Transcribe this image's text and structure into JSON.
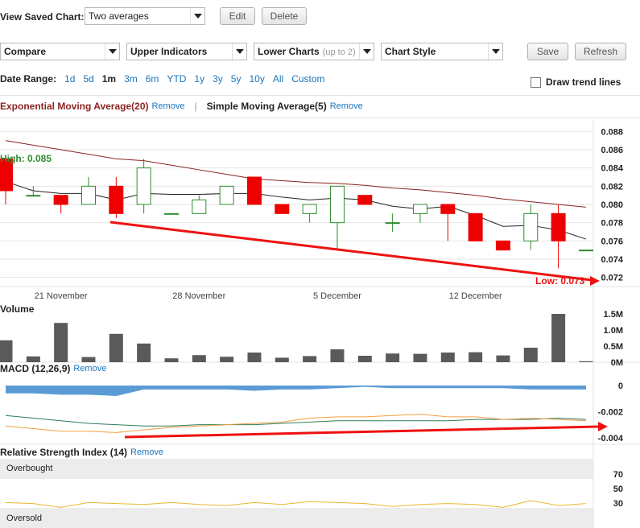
{
  "saved_chart": {
    "label": "View Saved Chart:",
    "value": "Two averages",
    "edit": "Edit",
    "delete": "Delete"
  },
  "toolbar": {
    "compare": "Compare",
    "upper_indicators": "Upper Indicators",
    "lower_charts": "Lower Charts",
    "lower_charts_sub": "(up to 2)",
    "chart_style": "Chart Style",
    "save": "Save",
    "refresh": "Refresh"
  },
  "date_range": {
    "label": "Date Range:",
    "options": [
      "1d",
      "5d",
      "1m",
      "3m",
      "6m",
      "YTD",
      "1y",
      "3y",
      "5y",
      "10y",
      "All",
      "Custom"
    ],
    "active": "1m"
  },
  "trend_lines": {
    "label": "Draw trend lines"
  },
  "indicators": [
    {
      "name": "Exponential Moving Average(20)",
      "remove": "Remove",
      "color": "#8b2323"
    },
    {
      "name": "Simple Moving Average(5)",
      "remove": "Remove",
      "color": "#222222"
    }
  ],
  "price_panel": {
    "high_label": "High: 0.085",
    "low_label": "Low: 0.073",
    "y_ticks": [
      "0.088",
      "0.086",
      "0.084",
      "0.082",
      "0.080",
      "0.078",
      "0.076",
      "0.074",
      "0.072"
    ],
    "x_ticks": [
      "21 November",
      "28 November",
      "5 December",
      "12 December"
    ]
  },
  "volume_panel": {
    "title": "Volume",
    "y_ticks": [
      "1.5M",
      "1.0M",
      "0.5M",
      "0M"
    ]
  },
  "macd_panel": {
    "title": "MACD (12,26,9)",
    "remove": "Remove",
    "y_ticks": [
      "0",
      "-0.002",
      "-0.004"
    ]
  },
  "rsi_panel": {
    "title": "Relative Strength Index (14)",
    "remove": "Remove",
    "overbought": "Overbought",
    "oversold": "Oversold",
    "y_ticks": [
      "70",
      "50",
      "30"
    ]
  },
  "colors": {
    "up": "#2e8b2e",
    "down": "#ee0000",
    "ema": "#8b2323",
    "sma": "#222222",
    "volume": "#5a5a5a",
    "macd_hist": "#5b9bd5",
    "macd_line": "#2e7d5a",
    "signal_line": "#f0a040",
    "rsi_line": "#e8b830",
    "annotation": "#ee1111"
  },
  "chart_data": [
    {
      "type": "candlestick",
      "ylim": [
        0.071,
        0.089
      ],
      "candles": [
        {
          "o": 0.085,
          "h": 0.085,
          "l": 0.08,
          "c": 0.0815
        },
        {
          "o": 0.081,
          "h": 0.082,
          "l": 0.081,
          "c": 0.081
        },
        {
          "o": 0.081,
          "h": 0.081,
          "l": 0.079,
          "c": 0.08
        },
        {
          "o": 0.08,
          "h": 0.083,
          "l": 0.08,
          "c": 0.082
        },
        {
          "o": 0.082,
          "h": 0.083,
          "l": 0.0785,
          "c": 0.079
        },
        {
          "o": 0.08,
          "h": 0.085,
          "l": 0.079,
          "c": 0.084
        },
        {
          "o": 0.079,
          "h": 0.079,
          "l": 0.079,
          "c": 0.079
        },
        {
          "o": 0.079,
          "h": 0.081,
          "l": 0.079,
          "c": 0.0805
        },
        {
          "o": 0.08,
          "h": 0.082,
          "l": 0.08,
          "c": 0.082
        },
        {
          "o": 0.083,
          "h": 0.083,
          "l": 0.08,
          "c": 0.08
        },
        {
          "o": 0.08,
          "h": 0.08,
          "l": 0.079,
          "c": 0.079
        },
        {
          "o": 0.079,
          "h": 0.08,
          "l": 0.078,
          "c": 0.08
        },
        {
          "o": 0.078,
          "h": 0.082,
          "l": 0.075,
          "c": 0.082
        },
        {
          "o": 0.081,
          "h": 0.081,
          "l": 0.08,
          "c": 0.08
        },
        {
          "o": 0.078,
          "h": 0.079,
          "l": 0.077,
          "c": 0.078
        },
        {
          "o": 0.079,
          "h": 0.08,
          "l": 0.078,
          "c": 0.08
        },
        {
          "o": 0.08,
          "h": 0.08,
          "l": 0.076,
          "c": 0.079
        },
        {
          "o": 0.079,
          "h": 0.079,
          "l": 0.076,
          "c": 0.076
        },
        {
          "o": 0.076,
          "h": 0.076,
          "l": 0.075,
          "c": 0.075
        },
        {
          "o": 0.076,
          "h": 0.08,
          "l": 0.075,
          "c": 0.079
        },
        {
          "o": 0.079,
          "h": 0.08,
          "l": 0.073,
          "c": 0.076
        },
        {
          "o": 0.075,
          "h": 0.075,
          "l": 0.075,
          "c": 0.075
        }
      ],
      "ema": [
        0.087,
        0.0865,
        0.086,
        0.0855,
        0.085,
        0.0848,
        0.0843,
        0.0838,
        0.0833,
        0.0828,
        0.0826,
        0.0824,
        0.0823,
        0.0821,
        0.0818,
        0.0816,
        0.0813,
        0.081,
        0.0806,
        0.0803,
        0.08,
        0.0797
      ],
      "sma": [
        0.0825,
        0.0815,
        0.0812,
        0.0812,
        0.0805,
        0.0812,
        0.0811,
        0.0811,
        0.0812,
        0.0812,
        0.0808,
        0.0805,
        0.0807,
        0.0805,
        0.0798,
        0.0795,
        0.0798,
        0.0788,
        0.0776,
        0.0777,
        0.0772,
        0.0762
      ]
    },
    {
      "type": "bar",
      "title": "Volume",
      "ylim": [
        0,
        1.5
      ],
      "values": [
        0.68,
        0.18,
        1.22,
        0.16,
        0.88,
        0.58,
        0.12,
        0.22,
        0.17,
        0.3,
        0.14,
        0.19,
        0.4,
        0.2,
        0.27,
        0.26,
        0.3,
        0.31,
        0.21,
        0.45,
        1.5,
        0.03
      ]
    },
    {
      "type": "area",
      "title": "MACD (12,26,9)",
      "ylim": [
        -0.0045,
        0.0008
      ],
      "histogram": [
        -0.0006,
        -0.0006,
        -0.0007,
        -0.0007,
        -0.0008,
        -0.0003,
        -0.0003,
        -0.0003,
        -0.0003,
        -0.0004,
        -0.0003,
        -0.0003,
        -0.0002,
        -0.0001,
        -0.0002,
        -0.0002,
        -0.0002,
        -0.0002,
        -0.0002,
        -0.0003,
        -0.0003,
        -0.0003
      ],
      "macd": [
        -0.0023,
        -0.0025,
        -0.0027,
        -0.0029,
        -0.003,
        -0.0031,
        -0.0031,
        -0.003,
        -0.003,
        -0.003,
        -0.0029,
        -0.0028,
        -0.0027,
        -0.0027,
        -0.0027,
        -0.0027,
        -0.0027,
        -0.0026,
        -0.0026,
        -0.0026,
        -0.0025,
        -0.0026
      ],
      "signal": [
        -0.0031,
        -0.0033,
        -0.0035,
        -0.0035,
        -0.0036,
        -0.0034,
        -0.0032,
        -0.0031,
        -0.003,
        -0.0029,
        -0.0028,
        -0.0025,
        -0.0024,
        -0.0024,
        -0.0023,
        -0.0022,
        -0.0024,
        -0.0024,
        -0.0026,
        -0.0025,
        -0.0026,
        -0.0027
      ]
    },
    {
      "type": "line",
      "title": "Relative Strength Index (14)",
      "ylim": [
        0,
        100
      ],
      "values": [
        38,
        37,
        33,
        38,
        37,
        36,
        38,
        36,
        35,
        38,
        36,
        39,
        38,
        37,
        34,
        36,
        37,
        36,
        33,
        40,
        35,
        37
      ]
    }
  ]
}
